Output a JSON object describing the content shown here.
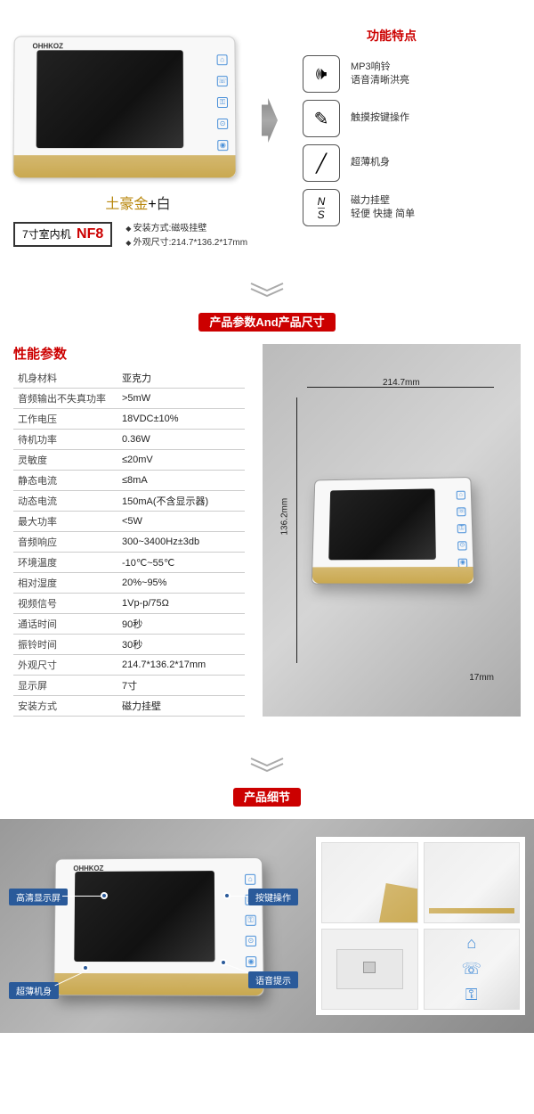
{
  "section1": {
    "color_gold": "土豪金",
    "color_plus": "+",
    "color_white": "白",
    "model_prefix": "7寸室内机",
    "model_id": "NF8",
    "install_spec": "安装方式:磁吸挂壁",
    "size_spec": "外观尺寸:214.7*136.2*17mm",
    "features_title": "功能特点",
    "features": [
      {
        "icon": "🕪",
        "line1": "MP3响铃",
        "line2": "语音清晰洪亮"
      },
      {
        "icon": "✎",
        "line1": "触摸按键操作",
        "line2": ""
      },
      {
        "icon": "╱",
        "line1": "超薄机身",
        "line2": ""
      },
      {
        "icon": "N/S",
        "line1": "磁力挂壁",
        "line2": "轻便 快捷 简单"
      }
    ]
  },
  "section2": {
    "header": "产品参数And产品尺寸",
    "table_title": "性能参数",
    "specs": [
      [
        "机身材料",
        "亚克力"
      ],
      [
        "音频输出不失真功率",
        ">5mW"
      ],
      [
        "工作电压",
        "18VDC±10%"
      ],
      [
        "待机功率",
        "0.36W"
      ],
      [
        "灵敏度",
        "≤20mV"
      ],
      [
        "静态电流",
        "≤8mA"
      ],
      [
        "动态电流",
        "150mA(不含显示器)"
      ],
      [
        "最大功率",
        "<5W"
      ],
      [
        "音频响应",
        "300~3400Hz±3db"
      ],
      [
        "环境温度",
        "-10℃~55℃"
      ],
      [
        "相对湿度",
        "20%~95%"
      ],
      [
        "视频信号",
        "1Vp-p/75Ω"
      ],
      [
        "通话时间",
        "90秒"
      ],
      [
        "振铃时间",
        "30秒"
      ],
      [
        "外观尺寸",
        "214.7*136.2*17mm"
      ],
      [
        "显示屏",
        "7寸"
      ],
      [
        "安装方式",
        "磁力挂壁"
      ]
    ],
    "dim_w": "214.7mm",
    "dim_h": "136.2mm",
    "dim_d": "17mm"
  },
  "section3": {
    "header": "产品细节",
    "callouts": {
      "screen": "高清显示屏",
      "body": "超薄机身",
      "buttons": "按键操作",
      "voice": "语音提示"
    }
  },
  "colors": {
    "red": "#c00",
    "gold1": "#d4b870",
    "gold2": "#c9a84f",
    "blue": "#2a5a9a",
    "icon_blue": "#4a90d9"
  },
  "brand": "OHHKOZ"
}
